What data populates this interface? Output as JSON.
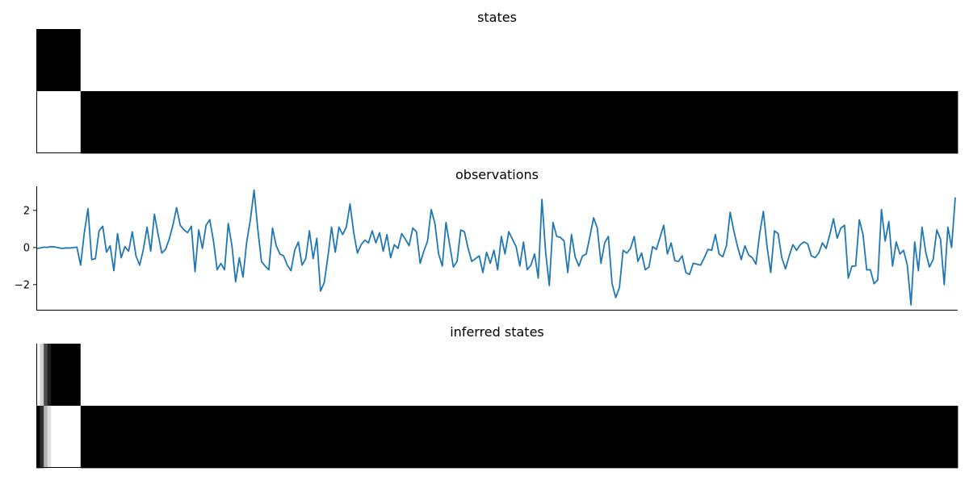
{
  "figure": {
    "panels": [
      {
        "title": "states"
      },
      {
        "title": "observations"
      },
      {
        "title": "inferred states"
      }
    ]
  },
  "chart_data": [
    {
      "type": "heatmap",
      "title": "states",
      "xlim": [
        0,
        250
      ],
      "rows": 2,
      "colormap": {
        "0": "#000000",
        "1": "#ffffff"
      },
      "cells": [
        {
          "row": 0,
          "t_start": 0,
          "t_end": 12,
          "value": 0
        },
        {
          "row": 0,
          "t_start": 12,
          "t_end": 250,
          "value": 1
        },
        {
          "row": 1,
          "t_start": 0,
          "t_end": 12,
          "value": 1
        },
        {
          "row": 1,
          "t_start": 12,
          "t_end": 250,
          "value": 0
        }
      ],
      "grid": false,
      "legend": "none"
    },
    {
      "type": "line",
      "title": "observations",
      "color": "#1f77b4",
      "xlim": [
        0,
        250
      ],
      "ylim": [
        -3.4,
        3.3
      ],
      "yticks": [
        2,
        0,
        -2
      ],
      "ytick_labels": [
        "2",
        "0",
        "−2"
      ],
      "grid": false,
      "legend": "none",
      "values": [
        -0.05,
        -0.03,
        0.02,
        0.01,
        0.05,
        0.03,
        -0.01,
        -0.05,
        -0.02,
        -0.03,
        0.0,
        0.02,
        -0.95,
        0.8,
        2.1,
        -0.65,
        -0.6,
        0.9,
        1.15,
        -0.25,
        0.1,
        -1.25,
        0.75,
        -0.55,
        0.05,
        -0.2,
        0.85,
        -0.45,
        -0.95,
        -0.1,
        1.1,
        -0.2,
        1.8,
        0.7,
        -0.3,
        -0.1,
        0.45,
        1.2,
        2.15,
        1.2,
        0.95,
        0.8,
        1.15,
        -1.3,
        0.95,
        -0.05,
        1.2,
        1.5,
        0.35,
        -1.2,
        -0.85,
        -1.2,
        1.3,
        0.1,
        -1.85,
        -0.55,
        -1.6,
        0.3,
        1.5,
        3.1,
        1.0,
        -0.75,
        -1.0,
        -1.2,
        1.05,
        0.1,
        -0.35,
        -0.45,
        -0.95,
        -1.25,
        -0.15,
        0.3,
        -0.95,
        -0.6,
        0.9,
        -0.6,
        0.5,
        -2.35,
        -1.9,
        -0.5,
        1.1,
        -0.25,
        1.1,
        0.7,
        1.1,
        2.35,
        0.8,
        -0.3,
        0.15,
        0.4,
        0.25,
        0.9,
        0.25,
        0.8,
        -0.2,
        0.7,
        -0.55,
        0.15,
        -0.05,
        0.75,
        0.45,
        0.1,
        1.05,
        0.85,
        -0.85,
        -0.2,
        0.35,
        2.05,
        1.3,
        -0.35,
        -1.0,
        1.35,
        0.15,
        -1.05,
        -0.75,
        0.95,
        0.85,
        -0.05,
        -0.75,
        -0.6,
        -0.45,
        -1.35,
        -0.25,
        -0.85,
        -0.15,
        -1.2,
        0.6,
        -0.35,
        0.85,
        0.45,
        0.05,
        -1.0,
        0.3,
        -1.2,
        -0.95,
        -0.35,
        -1.65,
        2.6,
        -0.25,
        -2.05,
        1.35,
        0.6,
        0.55,
        0.35,
        -1.35,
        0.7,
        -0.5,
        -1.0,
        -0.45,
        -0.35,
        0.6,
        1.6,
        1.05,
        -0.85,
        0.25,
        0.6,
        -1.95,
        -2.7,
        -2.15,
        -0.15,
        -0.3,
        -0.05,
        0.6,
        -0.75,
        -0.3,
        -1.2,
        -1.05,
        0.05,
        -0.1,
        0.55,
        1.2,
        -0.35,
        0.25,
        -0.7,
        -0.75,
        -0.45,
        -1.35,
        -1.45,
        -0.85,
        -0.9,
        -0.95,
        -0.55,
        -0.1,
        -0.15,
        0.7,
        -0.35,
        -0.5,
        0.1,
        1.9,
        0.9,
        0.05,
        -0.65,
        0.1,
        -0.4,
        -0.55,
        -0.9,
        0.75,
        1.95,
        0.05,
        -1.35,
        0.9,
        0.75,
        -0.55,
        -1.15,
        -0.45,
        0.15,
        -0.15,
        0.15,
        0.3,
        0.2,
        -0.45,
        -0.55,
        -0.3,
        0.25,
        -0.05,
        0.7,
        1.55,
        0.5,
        1.05,
        1.2,
        -1.65,
        -1.0,
        -1.0,
        1.5,
        0.7,
        -1.2,
        -1.2,
        -1.95,
        -1.75,
        2.05,
        0.35,
        1.4,
        -1.0,
        0.3,
        -0.35,
        -0.15,
        -0.95,
        -3.1,
        0.3,
        -1.25,
        1.1,
        -0.25,
        -1.05,
        -0.65,
        0.95,
        0.45,
        -2.0,
        1.1,
        0.0,
        2.7
      ]
    },
    {
      "type": "heatmap",
      "title": "inferred states",
      "xlim": [
        0,
        250
      ],
      "rows": 2,
      "colormap": {
        "0": "#000000",
        "1": "#ffffff"
      },
      "cells": [
        {
          "row": 0,
          "t_start": 0,
          "t_end": 1,
          "value": 0.98
        },
        {
          "row": 0,
          "t_start": 1,
          "t_end": 2,
          "value": 0.82
        },
        {
          "row": 0,
          "t_start": 2,
          "t_end": 3,
          "value": 0.3
        },
        {
          "row": 0,
          "t_start": 3,
          "t_end": 4,
          "value": 0.12
        },
        {
          "row": 0,
          "t_start": 4,
          "t_end": 12,
          "value": 0.0
        },
        {
          "row": 0,
          "t_start": 12,
          "t_end": 250,
          "value": 1.0
        },
        {
          "row": 1,
          "t_start": 0,
          "t_end": 1,
          "value": 0.02
        },
        {
          "row": 1,
          "t_start": 1,
          "t_end": 2,
          "value": 0.18
        },
        {
          "row": 1,
          "t_start": 2,
          "t_end": 3,
          "value": 0.7
        },
        {
          "row": 1,
          "t_start": 3,
          "t_end": 4,
          "value": 0.88
        },
        {
          "row": 1,
          "t_start": 4,
          "t_end": 12,
          "value": 1.0
        },
        {
          "row": 1,
          "t_start": 12,
          "t_end": 250,
          "value": 0.0
        }
      ],
      "grid": false,
      "legend": "none"
    }
  ]
}
